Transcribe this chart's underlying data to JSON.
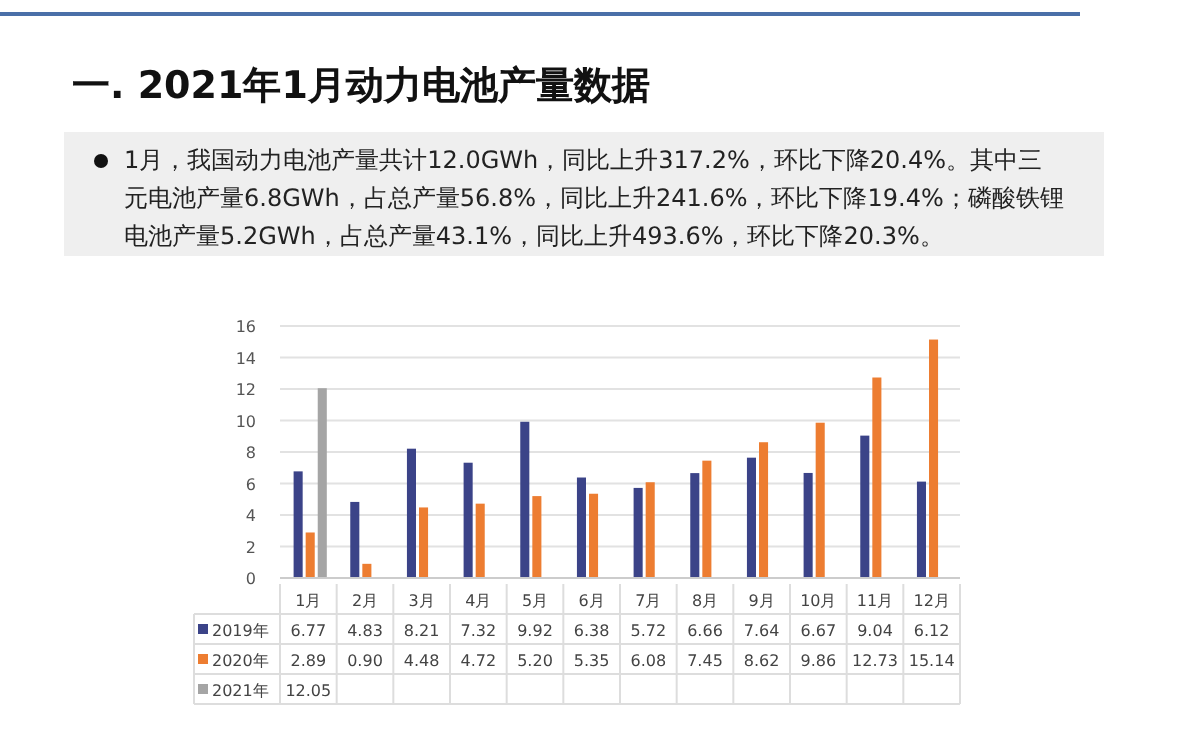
{
  "chart_data": {
    "type": "bar",
    "title": "一.  2021年1月动力电池产量数据",
    "annotations": [
      "1月，我国动力电池产量共计12.0GWh，同比上升317.2%，环比下降20.4%。其中三元电池产量6.8GWh，占总产量56.8%，同比上升241.6%，环比下降19.4%；磷酸铁锂电池产量5.2GWh，占总产量43.1%，同比上升493.6%，环比下降20.3%。"
    ],
    "categories": [
      "1月",
      "2月",
      "3月",
      "4月",
      "5月",
      "6月",
      "7月",
      "8月",
      "9月",
      "10月",
      "11月",
      "12月"
    ],
    "series": [
      {
        "name": "2019年",
        "color": "#3b4388",
        "values": [
          6.77,
          4.83,
          8.21,
          7.32,
          9.92,
          6.38,
          5.72,
          6.66,
          7.64,
          6.67,
          9.04,
          6.12
        ],
        "value_labels": [
          "6.77",
          "4.83",
          "8.21",
          "7.32",
          "9.92",
          "6.38",
          "5.72",
          "6.66",
          "7.64",
          "6.67",
          "9.04",
          "6.12"
        ]
      },
      {
        "name": "2020年",
        "color": "#ed7d31",
        "values": [
          2.89,
          0.9,
          4.48,
          4.72,
          5.2,
          5.35,
          6.08,
          7.45,
          8.62,
          9.86,
          12.73,
          15.14
        ],
        "value_labels": [
          "2.89",
          "0.90",
          "4.48",
          "4.72",
          "5.20",
          "5.35",
          "6.08",
          "7.45",
          "8.62",
          "9.86",
          "12.73",
          "15.14"
        ]
      },
      {
        "name": "2021年",
        "color": "#a5a5a5",
        "values": [
          12.05,
          null,
          null,
          null,
          null,
          null,
          null,
          null,
          null,
          null,
          null,
          null
        ],
        "value_labels": [
          "12.05",
          null,
          null,
          null,
          null,
          null,
          null,
          null,
          null,
          null,
          null,
          null
        ]
      }
    ],
    "ylim": [
      0,
      16
    ],
    "yticks": [
      0,
      2,
      4,
      6,
      8,
      10,
      12,
      14,
      16
    ],
    "grid": "y",
    "legend": "bottom"
  }
}
